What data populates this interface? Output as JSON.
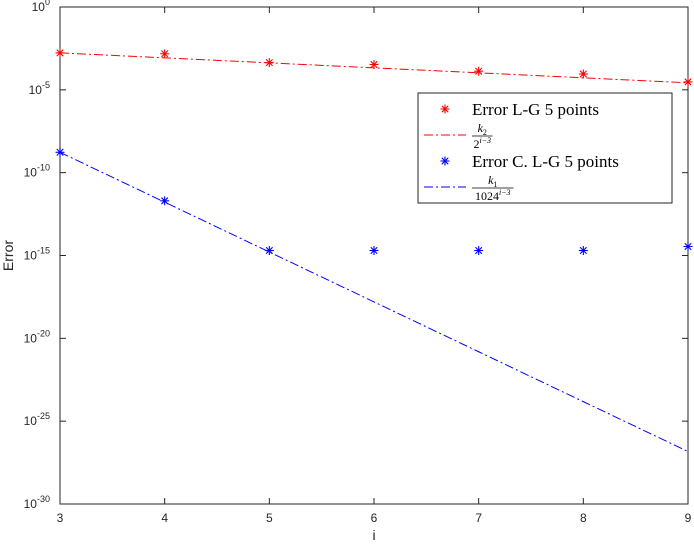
{
  "chart_data": {
    "type": "line",
    "title": "",
    "xlabel": "i",
    "ylabel": "Error",
    "xlim": [
      3,
      9
    ],
    "ylim": [
      1e-30,
      1
    ],
    "yscale": "log",
    "grid": false,
    "legend_position": "top-right",
    "x_ticks": [
      "3",
      "4",
      "5",
      "6",
      "7",
      "8",
      "9"
    ],
    "y_ticks": [
      {
        "base": "10",
        "exp": "0"
      },
      {
        "base": "10",
        "exp": "-5"
      },
      {
        "base": "10",
        "exp": "-10"
      },
      {
        "base": "10",
        "exp": "-15"
      },
      {
        "base": "10",
        "exp": "-20"
      },
      {
        "base": "10",
        "exp": "-25"
      },
      {
        "base": "10",
        "exp": "-30"
      }
    ],
    "series": [
      {
        "name": "Error L-G 5 points",
        "kind": "markers",
        "marker": "asterisk",
        "color": "#ff0000",
        "x": [
          3,
          4,
          5,
          6,
          7,
          8,
          9
        ],
        "y": [
          0.0017,
          0.0015,
          0.00044,
          0.00034,
          0.000133,
          9e-05,
          3e-05
        ]
      },
      {
        "name_parts": {
          "num": "k",
          "num_sub": "2",
          "den_base": "2",
          "den_exp": "i−3"
        },
        "kind": "line",
        "dash": "dashdot",
        "color": "#ff0000",
        "x": [
          3,
          4,
          5,
          6,
          7,
          8,
          9
        ],
        "y": [
          0.0017,
          0.00085,
          0.000425,
          0.0002125,
          0.00010625,
          5.3125e-05,
          2.65625e-05
        ]
      },
      {
        "name": "Error C. L-G 5 points",
        "kind": "markers",
        "marker": "asterisk",
        "color": "#0000ff",
        "x": [
          3,
          4,
          5,
          6,
          7,
          8,
          9
        ],
        "y": [
          1.7e-09,
          2e-12,
          2e-15,
          2e-15,
          2e-15,
          2e-15,
          3.5e-15
        ]
      },
      {
        "name_parts": {
          "num": "k",
          "num_sub": "1",
          "den_base": "1024",
          "den_exp": "i−3"
        },
        "kind": "line",
        "dash": "dashdot",
        "color": "#0000ff",
        "x": [
          3,
          4,
          5,
          6,
          7,
          8,
          9
        ],
        "y": [
          1.7e-09,
          1.66e-12,
          1.62e-15,
          1.58e-18,
          1.55e-21,
          1.51e-24,
          1.47e-27
        ]
      }
    ]
  }
}
